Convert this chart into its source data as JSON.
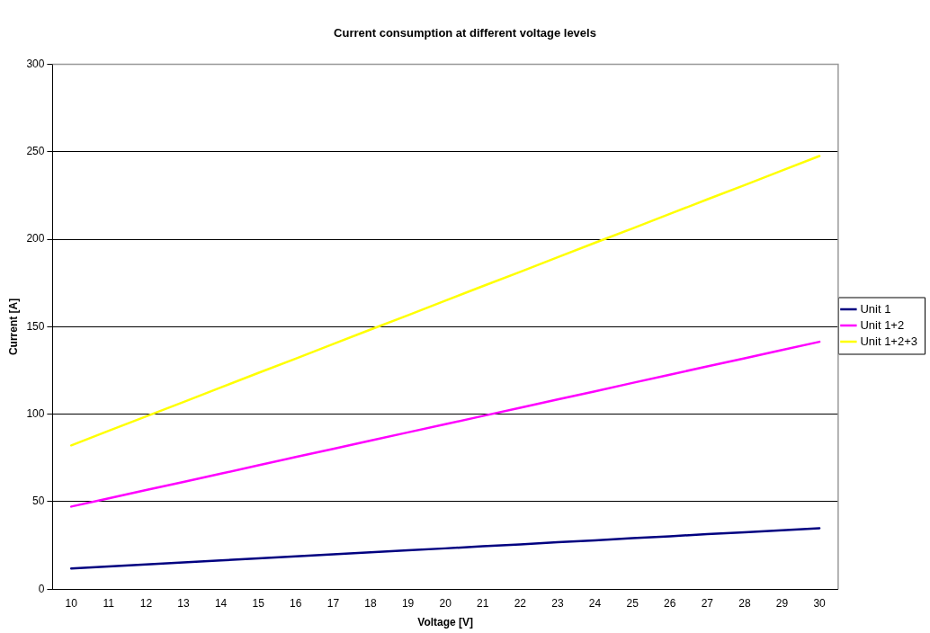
{
  "chart_data": {
    "type": "line",
    "title": "Current consumption at different voltage levels",
    "xlabel": "Voltage [V]",
    "ylabel": "Current [A]",
    "categories": [
      "10",
      "11",
      "12",
      "13",
      "14",
      "15",
      "16",
      "17",
      "18",
      "19",
      "20",
      "21",
      "22",
      "23",
      "24",
      "25",
      "26",
      "27",
      "28",
      "29",
      "30"
    ],
    "series": [
      {
        "name": "Unit 1",
        "color": "#000080",
        "values": [
          11.8,
          13.0,
          14.1,
          15.3,
          16.4,
          17.6,
          18.7,
          19.9,
          21.0,
          22.2,
          23.3,
          24.5,
          25.6,
          26.8,
          27.9,
          29.1,
          30.2,
          31.4,
          32.5,
          33.7,
          34.8
        ]
      },
      {
        "name": "Unit 1+2",
        "color": "#ff00ff",
        "values": [
          47.2,
          51.9,
          56.6,
          61.3,
          66.0,
          70.8,
          75.5,
          80.2,
          84.9,
          89.6,
          94.3,
          99.0,
          103.7,
          108.4,
          113.1,
          117.9,
          122.6,
          127.3,
          132.0,
          136.7,
          141.4
        ]
      },
      {
        "name": "Unit 1+2+3",
        "color": "#ffff00",
        "values": [
          82.2,
          90.5,
          98.7,
          107.0,
          115.3,
          123.6,
          131.8,
          140.1,
          148.4,
          156.6,
          164.9,
          173.2,
          181.4,
          189.7,
          198.0,
          206.2,
          214.5,
          222.8,
          231.0,
          239.3,
          247.6
        ]
      }
    ],
    "ylim": [
      0,
      300
    ],
    "yticks": [
      0,
      50,
      100,
      150,
      200,
      250,
      300
    ],
    "grid": "y",
    "legend": "right",
    "marker": "none",
    "line_style": "solid"
  }
}
